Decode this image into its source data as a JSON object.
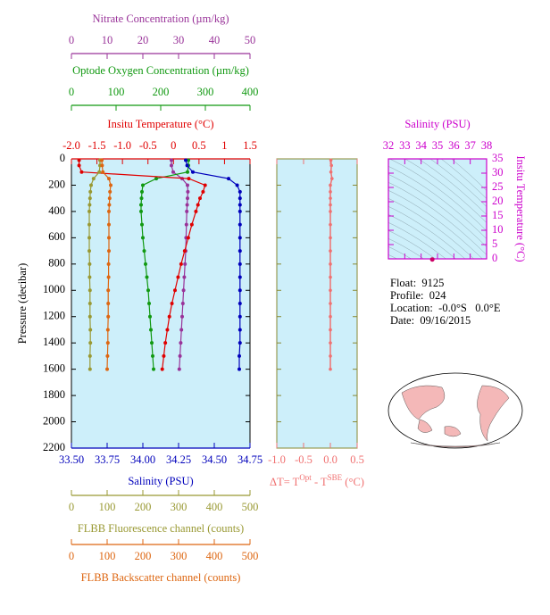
{
  "chart_data": [
    {
      "type": "line",
      "ylabel": "Pressure (decibar)",
      "ylim": [
        0,
        2200
      ],
      "y_inverted": true,
      "yticks": [
        0,
        200,
        400,
        600,
        800,
        1000,
        1200,
        1400,
        1600,
        1800,
        2000,
        2200
      ],
      "pressure": [
        10,
        50,
        100,
        150,
        200,
        250,
        300,
        350,
        400,
        500,
        600,
        700,
        800,
        900,
        1000,
        1100,
        1200,
        1300,
        1400,
        1500,
        1600
      ],
      "axes": [
        {
          "label": "Nitrate Concentration (µm/kg)",
          "color": "#993399",
          "xlim": [
            0,
            50
          ],
          "xticks": [
            0,
            10,
            20,
            30,
            40,
            50
          ]
        },
        {
          "label": "Optode Oxygen Concentration (µm/kg)",
          "color": "#119911",
          "xlim": [
            0,
            400
          ],
          "xticks": [
            0,
            100,
            200,
            300,
            400
          ]
        },
        {
          "label": "Insitu Temperature (°C)",
          "color": "#e00000",
          "xlim": [
            -2,
            1.5
          ],
          "xticks": [
            {
              "value": -2,
              "label": "-2.0"
            },
            -1.5,
            {
              "value": -1,
              "label": "-1.0"
            },
            -0.5,
            0,
            0.5,
            1,
            1.5
          ]
        },
        {
          "label": "Salinity (PSU)",
          "color": "#0000bb",
          "xlim": [
            33.5,
            34.75
          ],
          "xticks": [
            {
              "value": 33.5,
              "label": "33.50"
            },
            33.75,
            {
              "value": 34,
              "label": "34.00"
            },
            34.25,
            {
              "value": 34.5,
              "label": "34.50"
            },
            34.75
          ]
        },
        {
          "label": "FLBB Fluorescence channel (counts)",
          "color": "#999933",
          "xlim": [
            0,
            500
          ],
          "xticks": [
            0,
            100,
            200,
            300,
            400,
            500
          ]
        },
        {
          "label": "FLBB Backscatter channel (counts)",
          "color": "#dd6611",
          "xlim": [
            0,
            500
          ],
          "xticks": [
            0,
            100,
            200,
            300,
            400,
            500
          ]
        }
      ],
      "series": [
        {
          "axis": 0,
          "color": "#993399",
          "values": [
            28,
            28,
            28.5,
            31,
            32.5,
            32.6,
            32.5,
            32.4,
            32.3,
            32.2,
            32.1,
            32,
            31.8,
            31.6,
            31.4,
            31.2,
            31,
            30.8,
            30.6,
            30.4,
            30.2
          ]
        },
        {
          "axis": 1,
          "color": "#119911",
          "values": [
            262,
            262,
            260,
            190,
            160,
            158,
            157,
            156,
            156,
            158,
            160,
            163,
            166,
            169,
            172,
            174,
            176,
            178,
            180,
            182,
            184
          ]
        },
        {
          "axis": 2,
          "color": "#e00000",
          "values": [
            -1.85,
            -1.85,
            -1.8,
            0.3,
            0.62,
            0.58,
            0.52,
            0.48,
            0.44,
            0.36,
            0.29,
            0.22,
            0.15,
            0.09,
            0.03,
            -0.03,
            -0.08,
            -0.12,
            -0.16,
            -0.19,
            -0.22
          ]
        },
        {
          "axis": 3,
          "color": "#0000bb",
          "values": [
            34.3,
            34.31,
            34.35,
            34.6,
            34.66,
            34.68,
            34.68,
            34.68,
            34.68,
            34.68,
            34.68,
            34.68,
            34.68,
            34.68,
            34.68,
            34.68,
            34.68,
            34.68,
            34.68,
            34.675,
            34.675
          ]
        },
        {
          "axis": 4,
          "color": "#999933",
          "values": [
            80,
            80,
            78,
            62,
            55,
            53,
            52,
            51,
            50,
            50,
            50,
            50,
            51,
            51,
            52,
            52,
            52,
            53,
            53,
            52,
            52
          ]
        },
        {
          "axis": 5,
          "color": "#dd6611",
          "values": [
            85,
            86,
            88,
            105,
            110,
            108,
            107,
            106,
            105,
            105,
            105,
            105,
            104,
            104,
            103,
            103,
            103,
            102,
            102,
            101,
            100
          ]
        }
      ]
    },
    {
      "type": "line",
      "xlabel_parts": [
        "ΔT= T",
        "Opt",
        " - T",
        "SBE",
        " (°C)"
      ],
      "color": "#f07070",
      "xlim": [
        -1,
        0.5
      ],
      "xticks": [
        {
          "value": -1,
          "label": "-1.0"
        },
        -0.5,
        {
          "value": 0,
          "label": "0.0"
        },
        0.5
      ],
      "ylim": [
        0,
        2200
      ],
      "y_inverted": true,
      "yticks": [
        0,
        200,
        400,
        600,
        800,
        1000,
        1200,
        1400,
        1600,
        1800,
        2000,
        2200
      ],
      "pressure": [
        10,
        50,
        100,
        150,
        200,
        250,
        300,
        350,
        400,
        500,
        600,
        700,
        800,
        900,
        1000,
        1100,
        1200,
        1300,
        1400,
        1500,
        1600
      ],
      "values": [
        0.01,
        0.02,
        0.01,
        0.03,
        0.0,
        0.0,
        0.0,
        0.0,
        0.0,
        0.0,
        0.0,
        0.0,
        0.0,
        0.0,
        0.0,
        0.0,
        0.0,
        0.0,
        0.0,
        0.0,
        0.0
      ]
    },
    {
      "type": "scatter",
      "xlabel": "Salinity (PSU)",
      "ylabel": "Insitu Temperature (°C)",
      "color": "#cc00cc",
      "point_color": "#cc0066",
      "xlim": [
        32,
        38
      ],
      "xticks": [
        32,
        33,
        34,
        35,
        36,
        37,
        38
      ],
      "ylim": [
        0,
        35
      ],
      "yticks": [
        0,
        5,
        10,
        15,
        20,
        25,
        30,
        35
      ],
      "x": [
        34.68
      ],
      "y": [
        -0.22
      ]
    }
  ],
  "info": {
    "float": "Float:  9125",
    "profile": "Profile:  024",
    "location": "Location:  -0.0°S   0.0°E",
    "date": "Date:  09/16/2015"
  }
}
